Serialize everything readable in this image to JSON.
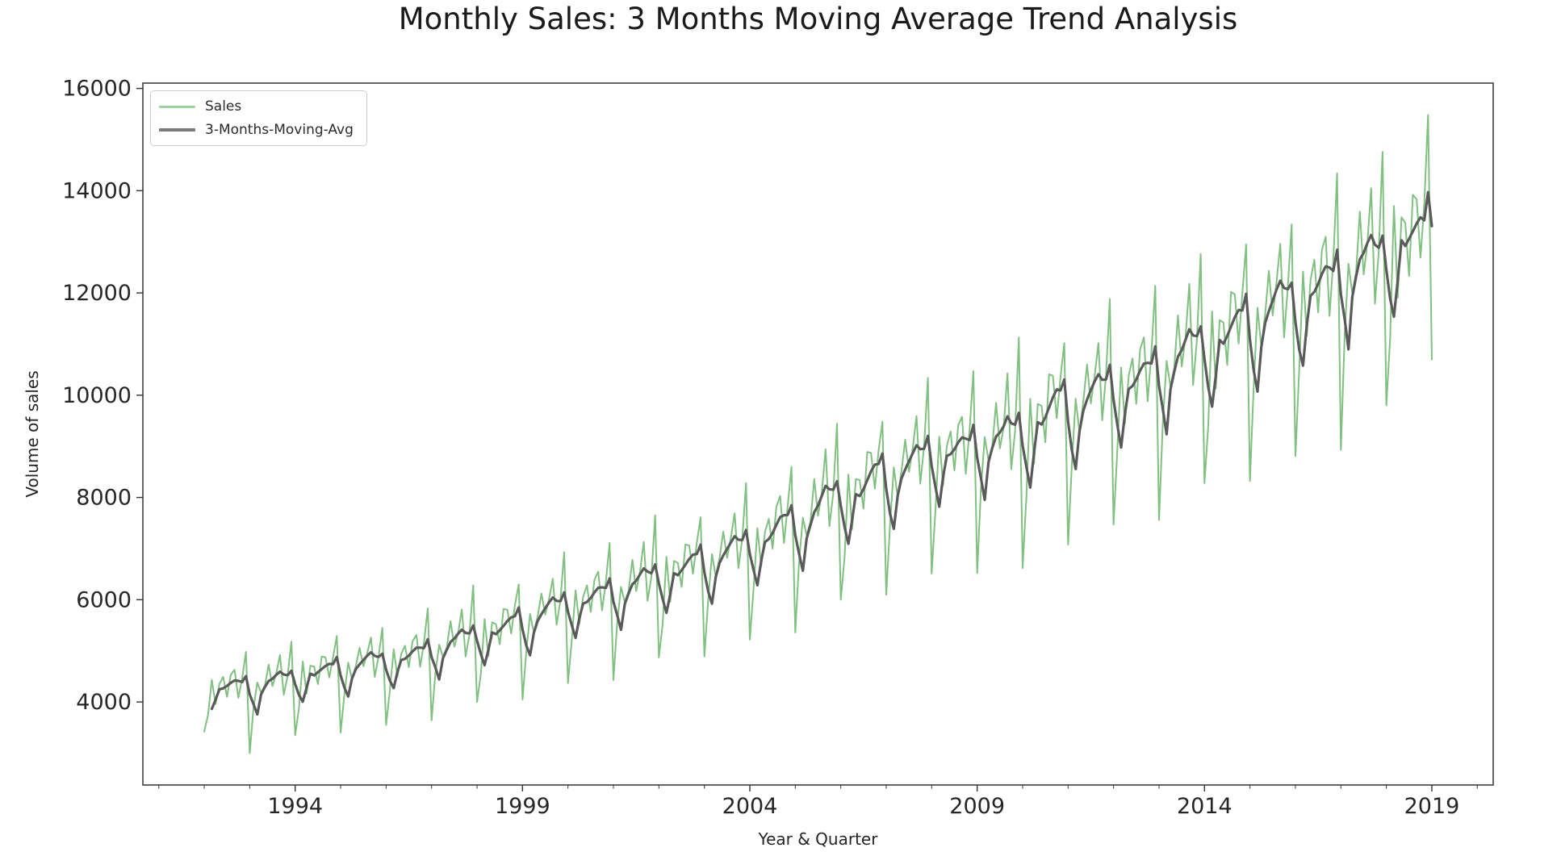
{
  "figure": {
    "background": "#ffffff",
    "frame_color": "#404040",
    "tick_color": "#333333",
    "tick_label_color": "#262626"
  },
  "chart_data": {
    "type": "line",
    "title": "Monthly Sales: 3 Months Moving Average Trend Analysis",
    "xlabel": "Year & Quarter",
    "ylabel": "Volume of sales",
    "frequency": "monthly",
    "x_start": "1992-01",
    "x_end": "2019-01",
    "xlim": [
      1990.65,
      2020.35
    ],
    "ylim": [
      2376,
      16104
    ],
    "xticks_major": [
      1994,
      1999,
      2004,
      2009,
      2014,
      2019
    ],
    "xticks_minor_years": [
      1991,
      1992,
      1993,
      1995,
      1996,
      1997,
      1998,
      2000,
      2001,
      2002,
      2003,
      2005,
      2006,
      2007,
      2008,
      2010,
      2011,
      2012,
      2013,
      2015,
      2016,
      2017,
      2018,
      2020
    ],
    "yticks": [
      4000,
      6000,
      8000,
      10000,
      12000,
      14000,
      16000
    ],
    "grid": false,
    "legend_position": "upper-left",
    "series": [
      {
        "name": "Sales",
        "color": "#80c080",
        "swatch_color": "#9ed49e",
        "line_width": 2,
        "values": [
          3420,
          3740,
          4430,
          3960,
          4350,
          4490,
          4100,
          4530,
          4630,
          4080,
          4460,
          4980,
          3000,
          3890,
          4380,
          4180,
          4320,
          4730,
          4310,
          4550,
          4920,
          4140,
          4510,
          5180,
          3350,
          3880,
          4790,
          4160,
          4710,
          4690,
          4350,
          4890,
          4870,
          4480,
          4870,
          5290,
          3400,
          4150,
          4770,
          4450,
          4700,
          5060,
          4700,
          4950,
          5260,
          4490,
          4890,
          5450,
          3550,
          4240,
          5030,
          4490,
          4940,
          5100,
          4680,
          5190,
          5310,
          4690,
          5160,
          5830,
          3640,
          4560,
          5120,
          4880,
          5060,
          5580,
          5080,
          5350,
          5810,
          4890,
          5320,
          6280,
          4000,
          4540,
          5620,
          4900,
          5560,
          5520,
          5130,
          5820,
          5800,
          5340,
          5900,
          6300,
          4050,
          4970,
          5720,
          5360,
          5670,
          6120,
          5710,
          6010,
          6410,
          5510,
          5990,
          6930,
          4370,
          5210,
          6180,
          5530,
          6060,
          6280,
          5760,
          6390,
          6550,
          5790,
          6350,
          7110,
          4430,
          5550,
          6250,
          5950,
          6170,
          6780,
          6170,
          6540,
          7130,
          5980,
          6440,
          7650,
          4870,
          5520,
          6840,
          5960,
          6760,
          6720,
          6250,
          7080,
          7060,
          6510,
          7110,
          7610,
          4890,
          5990,
          6890,
          6450,
          6820,
          7330,
          6820,
          7210,
          7690,
          6620,
          7190,
          8280,
          5220,
          6230,
          7400,
          6650,
          7330,
          7580,
          7000,
          7820,
          8030,
          7110,
          7830,
          8600,
          5360,
          6740,
          7600,
          7260,
          7520,
          8360,
          7640,
          8100,
          8940,
          7440,
          8070,
          9440,
          6000,
          6830,
          8450,
          7380,
          8360,
          8340,
          7780,
          8890,
          8870,
          8170,
          8930,
          9480,
          6100,
          7470,
          8590,
          8010,
          8500,
          9130,
          8500,
          8970,
          9590,
          8270,
          9000,
          10340,
          6510,
          7760,
          9190,
          8240,
          9010,
          9290,
          8530,
          9410,
          9580,
          8460,
          9330,
          10470,
          6520,
          8160,
          9180,
          8730,
          9000,
          9850,
          8960,
          9370,
          10430,
          8550,
          9290,
          11130,
          6620,
          8030,
          9930,
          8660,
          9830,
          9790,
          9080,
          10410,
          10380,
          9550,
          10350,
          11020,
          7080,
          8660,
          9930,
          9270,
          9870,
          10600,
          9840,
          10370,
          11020,
          9510,
          10390,
          11880,
          7470,
          8920,
          10540,
          9440,
          10380,
          10720,
          9830,
          10890,
          11130,
          9880,
          10850,
          12140,
          7560,
          9480,
          10670,
          10170,
          10530,
          11560,
          10560,
          11130,
          12180,
          10200,
          11080,
          12760,
          8280,
          9410,
          11640,
          10130,
          11470,
          11420,
          10590,
          12020,
          11970,
          11010,
          11990,
          12950,
          8320,
          10180,
          11710,
          10940,
          11570,
          12430,
          11560,
          12200,
          12960,
          11130,
          12130,
          13340,
          8810,
          10510,
          12420,
          11160,
          12250,
          12650,
          11620,
          12840,
          13100,
          11550,
          12640,
          14340,
          8930,
          11190,
          12570,
          11990,
          12400,
          13590,
          12360,
          12990,
          14050,
          11790,
          12810,
          14760,
          9800,
          11110,
          13700,
          11910,
          13480,
          13370,
          12330,
          13920,
          13830,
          12690,
          13740,
          15480,
          10700
        ]
      },
      {
        "name": "3-Months-Moving-Avg",
        "color": "#5a5a5a",
        "swatch_color": "#7a7a7a",
        "line_width": 3.2,
        "derived_from": "Sales",
        "derivation": "trailing_rolling_mean",
        "window": 3
      }
    ]
  }
}
